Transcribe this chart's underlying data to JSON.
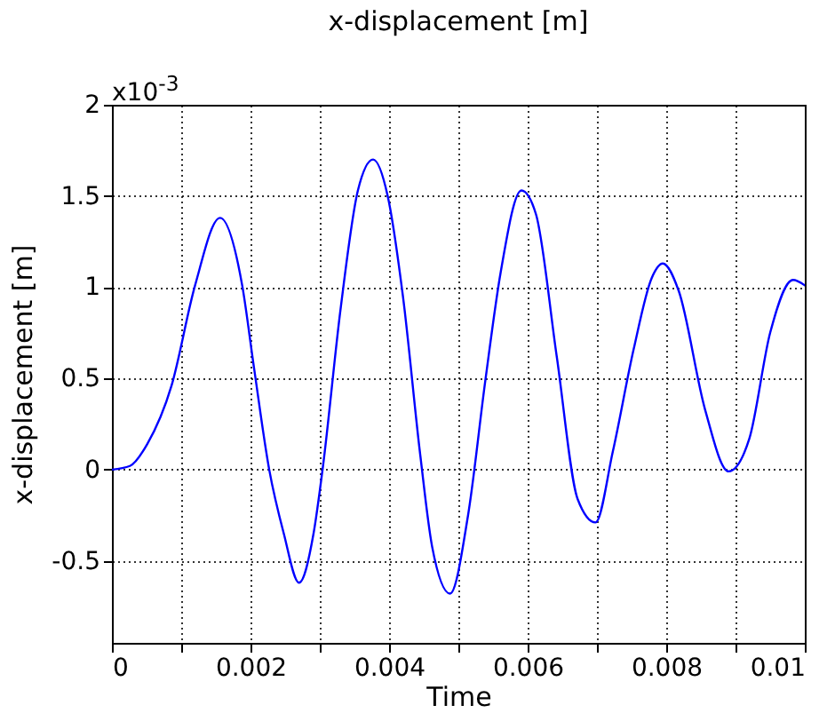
{
  "chart_data": {
    "type": "line",
    "title": "x-displacement [m]",
    "xlabel": "Time",
    "ylabel": "x-displacement [m]",
    "annotations": [
      "x10$^{-3}$"
    ],
    "x": [
      0,
      0.00026,
      0.00051,
      0.00086,
      0.0012,
      0.00156,
      0.00188,
      0.00205,
      0.00227,
      0.00248,
      0.0027,
      0.00291,
      0.00304,
      0.0033,
      0.00355,
      0.00377,
      0.00398,
      0.0042,
      0.00445,
      0.00462,
      0.00488,
      0.00514,
      0.00539,
      0.00561,
      0.00591,
      0.00612,
      0.00642,
      0.00672,
      0.00698,
      0.00723,
      0.00753,
      0.00779,
      0.00795,
      0.00818,
      0.00856,
      0.0089,
      0.0092,
      0.0095,
      0.00983,
      0.01
    ],
    "series": [
      {
        "color": "#0000ff",
        "values": [
          0,
          0.02,
          0.14,
          0.46,
          1.01,
          1.38,
          1.01,
          0.56,
          0,
          -0.35,
          -0.62,
          -0.35,
          0,
          0.88,
          1.53,
          1.7,
          1.5,
          0.95,
          0.08,
          -0.42,
          -0.68,
          -0.25,
          0.49,
          1.08,
          1.53,
          1.4,
          0.62,
          -0.16,
          -0.29,
          0.1,
          0.66,
          1.05,
          1.13,
          0.98,
          0.33,
          -0.01,
          0.17,
          0.75,
          1.04,
          1.01
        ]
      }
    ],
    "xlim": [
      0,
      0.01
    ],
    "ylim": [
      -0.95,
      2
    ],
    "xticks": [
      0,
      {
        "value": 0.001,
        "label": null
      },
      0.002,
      {
        "value": 0.003,
        "label": null
      },
      0.004,
      {
        "value": 0.005,
        "label": null
      },
      0.006,
      {
        "value": 0.007,
        "label": null
      },
      0.008,
      {
        "value": 0.009,
        "label": null
      },
      0.01
    ],
    "yticks": [
      -0.5,
      0,
      0.5,
      1,
      1.5,
      2
    ],
    "grid": true,
    "line_style": "solid",
    "marker": "none"
  }
}
